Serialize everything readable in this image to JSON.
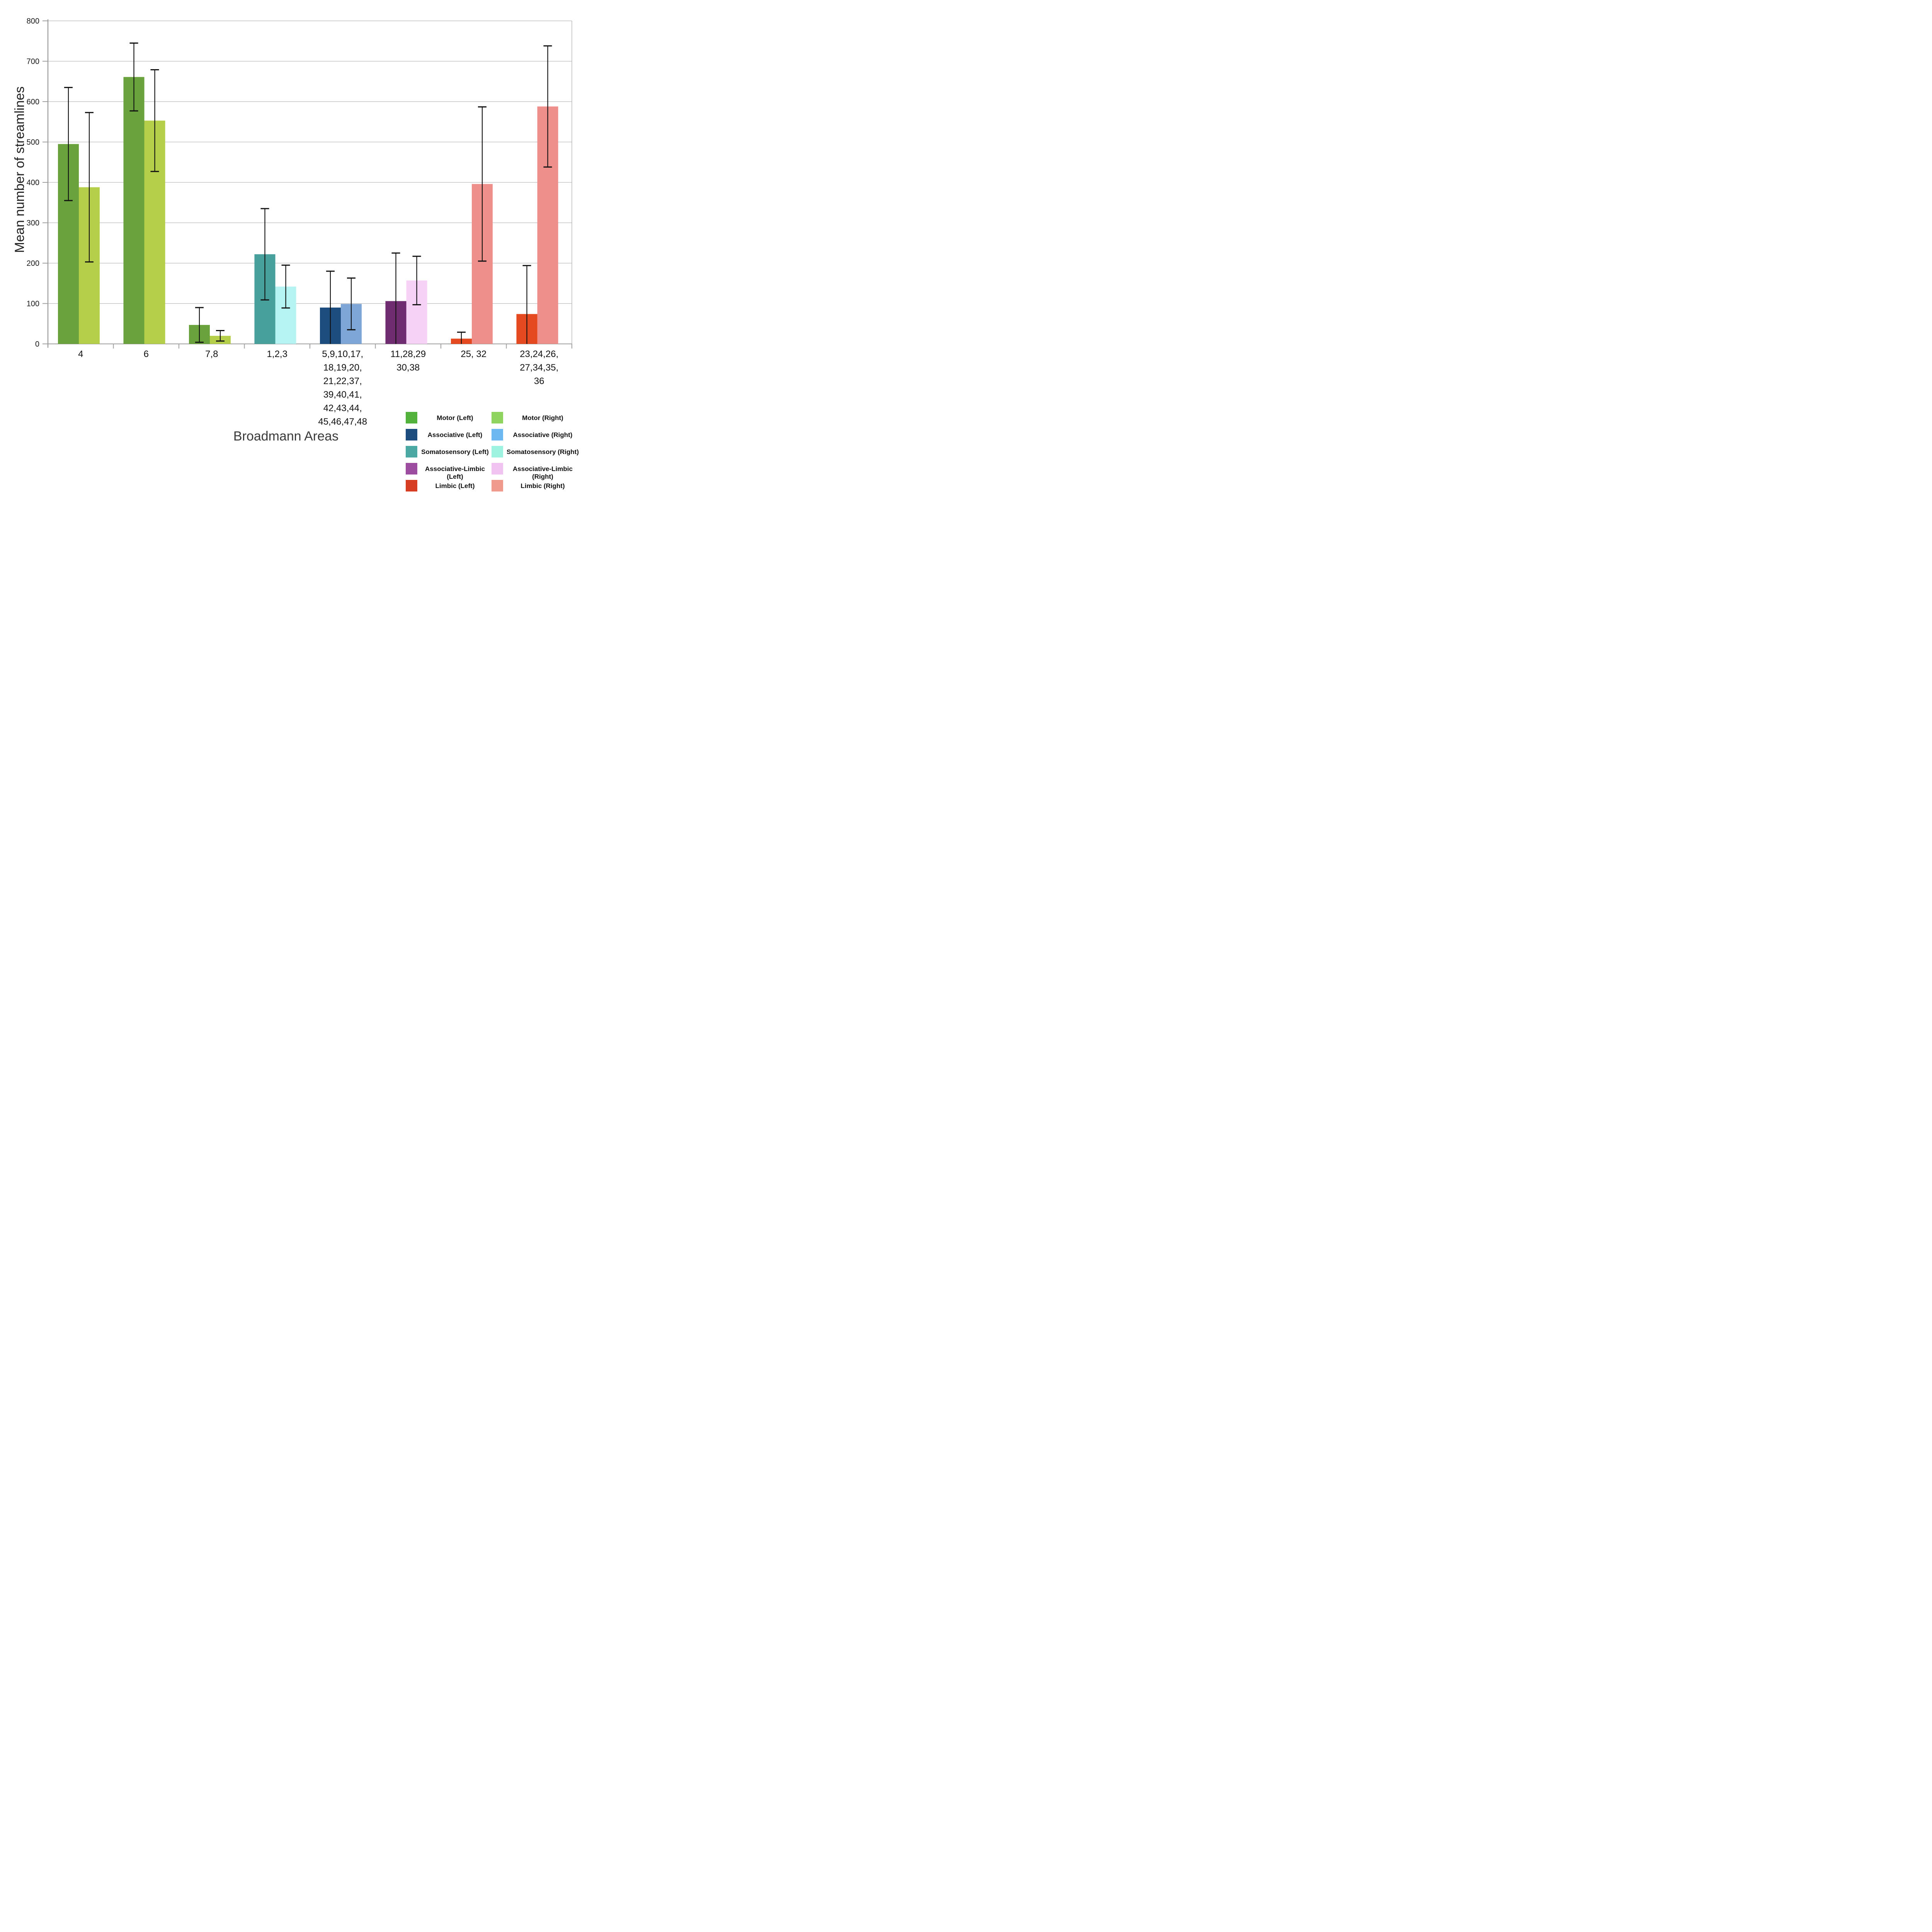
{
  "chart_data": {
    "type": "bar",
    "title": "",
    "xlabel": "Broadmann Areas",
    "ylabel": "Mean number of streamlines",
    "ylim": [
      0,
      800
    ],
    "ytick_step": 100,
    "yticks": [
      "0",
      "100",
      "200",
      "300",
      "400",
      "500",
      "600",
      "700",
      "800"
    ],
    "grid": true,
    "legend_position": "bottom-right",
    "groups": [
      {
        "category": [
          "4"
        ],
        "bars": [
          {
            "class": "motor-left",
            "value": 495,
            "err": 140
          },
          {
            "class": "motor-right",
            "value": 388,
            "err": 185
          }
        ]
      },
      {
        "category": [
          "6"
        ],
        "bars": [
          {
            "class": "motor-left",
            "value": 661,
            "err": 84
          },
          {
            "class": "motor-right",
            "value": 553,
            "err": 126
          }
        ]
      },
      {
        "category": [
          "7,8"
        ],
        "bars": [
          {
            "class": "motor-left",
            "value": 47,
            "err": 43
          },
          {
            "class": "motor-right",
            "value": 20,
            "err": 13
          }
        ]
      },
      {
        "category": [
          "1,2,3"
        ],
        "bars": [
          {
            "class": "somatosensory-left",
            "value": 222,
            "err": 113
          },
          {
            "class": "somatosensory-right",
            "value": 142,
            "err": 53
          }
        ]
      },
      {
        "category": [
          "5,9,10,17,",
          "18,19,20,",
          "21,22,37,",
          "39,40,41,",
          "42,43,44,",
          "45,46,47,48"
        ],
        "bars": [
          {
            "class": "associative-left",
            "value": 90,
            "err": 90
          },
          {
            "class": "associative-right",
            "value": 99,
            "err": 64
          }
        ]
      },
      {
        "category": [
          "11,28,29",
          "30,38"
        ],
        "bars": [
          {
            "class": "associative-limbic-left",
            "value": 106,
            "err": 119
          },
          {
            "class": "associative-limbic-right",
            "value": 157,
            "err": 60
          }
        ]
      },
      {
        "category": [
          "25, 32"
        ],
        "bars": [
          {
            "class": "limbic-left",
            "value": 13,
            "err": 16
          },
          {
            "class": "limbic-right",
            "value": 396,
            "err": 191
          }
        ]
      },
      {
        "category": [
          "23,24,26,",
          "27,34,35,",
          "36"
        ],
        "bars": [
          {
            "class": "limbic-left",
            "value": 74,
            "err": 120
          },
          {
            "class": "limbic-right",
            "value": 588,
            "err": 150
          }
        ]
      }
    ],
    "classes": {
      "motor-left": {
        "label": "Motor (Left)",
        "bar_color": "#6aa23d",
        "legend_color": "#52b23b"
      },
      "motor-right": {
        "label": "Motor (Right)",
        "bar_color": "#b6cf4b",
        "legend_color": "#8ed45e"
      },
      "associative-left": {
        "label": "Associative (Left)",
        "bar_color": "#1d4d7e",
        "legend_color": "#1d4d7e"
      },
      "associative-right": {
        "label": "Associative (Right)",
        "bar_color": "#7ea6d6",
        "legend_color": "#6eb8f2"
      },
      "somatosensory-left": {
        "label": "Somatosensory (Left)",
        "bar_color": "#47a09c",
        "legend_color": "#4ba8a3"
      },
      "somatosensory-right": {
        "label": "Somatosensory (Right)",
        "bar_color": "#b6f4f4",
        "legend_color": "#9df2e0"
      },
      "associative-limbic-left": {
        "label": "Associative-Limbic (Left)",
        "bar_color": "#702c71",
        "legend_color": "#9c4d9f"
      },
      "associative-limbic-right": {
        "label": "Associative-Limbic (Right)",
        "bar_color": "#f6d2f6",
        "legend_color": "#f1c3f0"
      },
      "limbic-left": {
        "label": "Limbic (Left)",
        "bar_color": "#e5491f",
        "legend_color": "#d63d22"
      },
      "limbic-right": {
        "label": "Limbic (Right)",
        "bar_color": "#ef8f8c",
        "legend_color": "#f0998d"
      }
    },
    "legend_columns": [
      [
        "motor-left",
        "associative-left",
        "somatosensory-left",
        "associative-limbic-left",
        "limbic-left"
      ],
      [
        "motor-right",
        "associative-right",
        "somatosensory-right",
        "associative-limbic-right",
        "limbic-right"
      ]
    ],
    "colors": {
      "gridline": "#b8b8b8",
      "axis": "#9e9e9e",
      "error_bar": "#111111",
      "tick_text": "#1a1a1a"
    }
  }
}
